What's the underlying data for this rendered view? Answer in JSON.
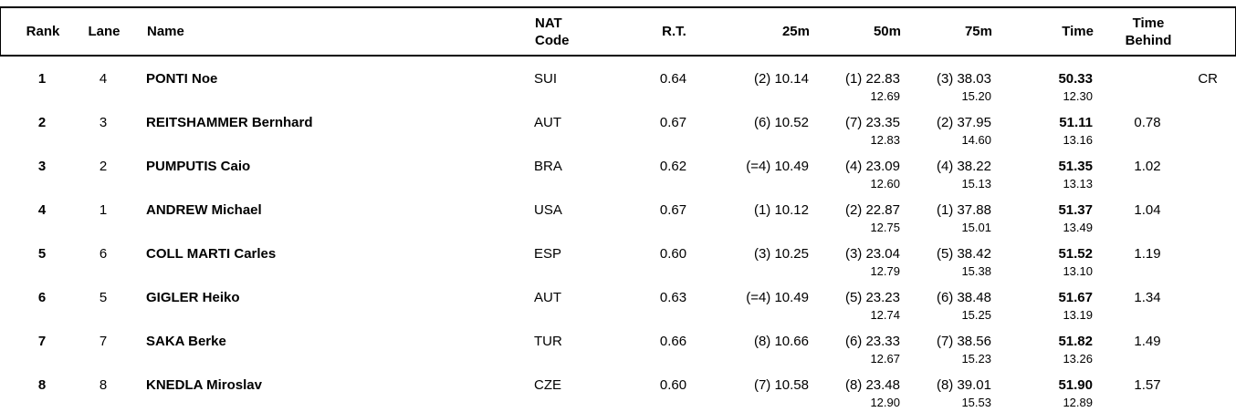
{
  "table": {
    "headers": {
      "rank": "Rank",
      "lane": "Lane",
      "name": "Name",
      "nat_line1": "NAT",
      "nat_line2": "Code",
      "rt": "R.T.",
      "m25": "25m",
      "m50": "50m",
      "m75": "75m",
      "time": "Time",
      "behind_line1": "Time",
      "behind_line2": "Behind"
    },
    "rows": [
      {
        "rank": "1",
        "lane": "4",
        "name": "PONTI Noe",
        "nat": "SUI",
        "rt": "0.64",
        "m25": "(2) 10.14",
        "m50": "(1) 22.83",
        "lap50": "12.69",
        "m75": "(3) 38.03",
        "lap75": "15.20",
        "time": "50.33",
        "lap_final": "12.30",
        "behind": "",
        "note": "CR"
      },
      {
        "rank": "2",
        "lane": "3",
        "name": "REITSHAMMER Bernhard",
        "nat": "AUT",
        "rt": "0.67",
        "m25": "(6) 10.52",
        "m50": "(7) 23.35",
        "lap50": "12.83",
        "m75": "(2) 37.95",
        "lap75": "14.60",
        "time": "51.11",
        "lap_final": "13.16",
        "behind": "0.78",
        "note": ""
      },
      {
        "rank": "3",
        "lane": "2",
        "name": "PUMPUTIS Caio",
        "nat": "BRA",
        "rt": "0.62",
        "m25": "(=4) 10.49",
        "m50": "(4) 23.09",
        "lap50": "12.60",
        "m75": "(4) 38.22",
        "lap75": "15.13",
        "time": "51.35",
        "lap_final": "13.13",
        "behind": "1.02",
        "note": ""
      },
      {
        "rank": "4",
        "lane": "1",
        "name": "ANDREW Michael",
        "nat": "USA",
        "rt": "0.67",
        "m25": "(1) 10.12",
        "m50": "(2) 22.87",
        "lap50": "12.75",
        "m75": "(1) 37.88",
        "lap75": "15.01",
        "time": "51.37",
        "lap_final": "13.49",
        "behind": "1.04",
        "note": ""
      },
      {
        "rank": "5",
        "lane": "6",
        "name": "COLL MARTI Carles",
        "nat": "ESP",
        "rt": "0.60",
        "m25": "(3) 10.25",
        "m50": "(3) 23.04",
        "lap50": "12.79",
        "m75": "(5) 38.42",
        "lap75": "15.38",
        "time": "51.52",
        "lap_final": "13.10",
        "behind": "1.19",
        "note": ""
      },
      {
        "rank": "6",
        "lane": "5",
        "name": "GIGLER Heiko",
        "nat": "AUT",
        "rt": "0.63",
        "m25": "(=4) 10.49",
        "m50": "(5) 23.23",
        "lap50": "12.74",
        "m75": "(6) 38.48",
        "lap75": "15.25",
        "time": "51.67",
        "lap_final": "13.19",
        "behind": "1.34",
        "note": ""
      },
      {
        "rank": "7",
        "lane": "7",
        "name": "SAKA Berke",
        "nat": "TUR",
        "rt": "0.66",
        "m25": "(8) 10.66",
        "m50": "(6) 23.33",
        "lap50": "12.67",
        "m75": "(7) 38.56",
        "lap75": "15.23",
        "time": "51.82",
        "lap_final": "13.26",
        "behind": "1.49",
        "note": ""
      },
      {
        "rank": "8",
        "lane": "8",
        "name": "KNEDLA Miroslav",
        "nat": "CZE",
        "rt": "0.60",
        "m25": "(7) 10.58",
        "m50": "(8) 23.48",
        "lap50": "12.90",
        "m75": "(8) 39.01",
        "lap75": "15.53",
        "time": "51.90",
        "lap_final": "12.89",
        "behind": "1.57",
        "note": ""
      }
    ]
  }
}
